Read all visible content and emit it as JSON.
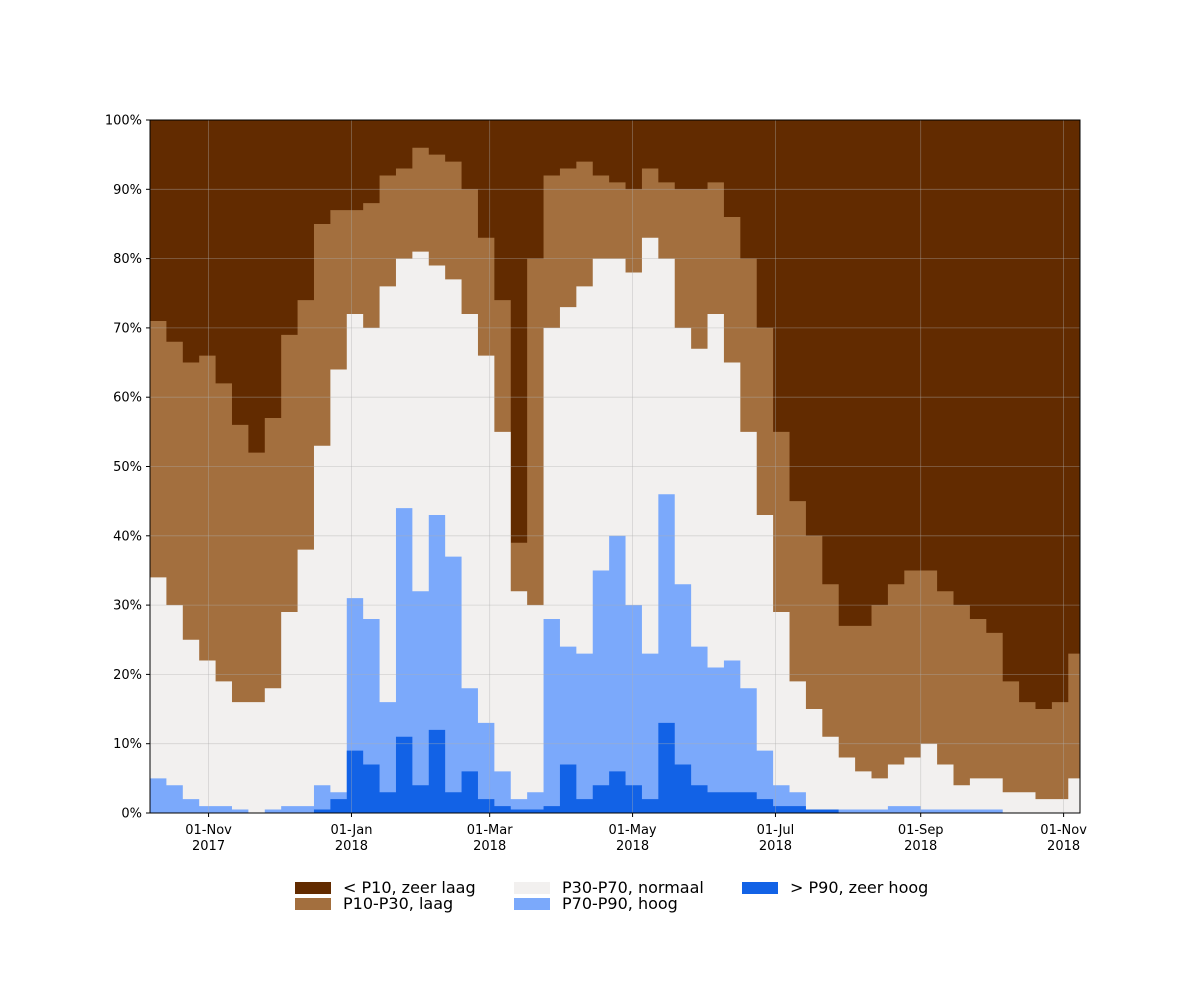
{
  "chart_data": {
    "type": "area",
    "stacked": "percent",
    "title": "",
    "xlabel": "",
    "ylabel": "",
    "ylim": [
      0,
      100
    ],
    "y_ticks": [
      "0%",
      "10%",
      "20%",
      "30%",
      "40%",
      "50%",
      "60%",
      "70%",
      "80%",
      "90%",
      "100%"
    ],
    "x_range": [
      "2017-10-07",
      "2018-11-08"
    ],
    "x_ticks": [
      {
        "date": "2017-11-01",
        "line1": "01-Nov",
        "line2": "2017"
      },
      {
        "date": "2018-01-01",
        "line1": "01-Jan",
        "line2": "2018"
      },
      {
        "date": "2018-03-01",
        "line1": "01-Mar",
        "line2": "2018"
      },
      {
        "date": "2018-05-01",
        "line1": "01-May",
        "line2": "2018"
      },
      {
        "date": "2018-07-01",
        "line1": "01-Jul",
        "line2": "2018"
      },
      {
        "date": "2018-09-01",
        "line1": "01-Sep",
        "line2": "2018"
      },
      {
        "date": "2018-11-01",
        "line1": "01-Nov",
        "line2": "2018"
      }
    ],
    "grid": true,
    "legend_position": "bottom",
    "dates": [
      "2017-10-07",
      "2017-10-14",
      "2017-10-21",
      "2017-10-28",
      "2017-11-04",
      "2017-11-11",
      "2017-11-18",
      "2017-11-25",
      "2017-12-02",
      "2017-12-09",
      "2017-12-16",
      "2017-12-23",
      "2017-12-30",
      "2018-01-06",
      "2018-01-13",
      "2018-01-20",
      "2018-01-27",
      "2018-02-03",
      "2018-02-10",
      "2018-02-17",
      "2018-02-24",
      "2018-03-03",
      "2018-03-10",
      "2018-03-17",
      "2018-03-24",
      "2018-03-31",
      "2018-04-07",
      "2018-04-14",
      "2018-04-21",
      "2018-04-28",
      "2018-05-05",
      "2018-05-12",
      "2018-05-19",
      "2018-05-26",
      "2018-06-02",
      "2018-06-09",
      "2018-06-16",
      "2018-06-23",
      "2018-06-30",
      "2018-07-07",
      "2018-07-14",
      "2018-07-21",
      "2018-07-28",
      "2018-08-04",
      "2018-08-11",
      "2018-08-18",
      "2018-08-25",
      "2018-09-01",
      "2018-09-08",
      "2018-09-15",
      "2018-09-22",
      "2018-09-29",
      "2018-10-06",
      "2018-10-13",
      "2018-10-20",
      "2018-10-27",
      "2018-11-03",
      "2018-11-08"
    ],
    "series": [
      {
        "name": "> P90, zeer hoog",
        "color": "#1262E6",
        "cumulative": [
          0,
          0,
          0,
          0,
          0,
          0,
          0,
          0,
          0,
          0,
          0.5,
          2,
          9,
          7,
          3,
          11,
          4,
          12,
          3,
          6,
          2,
          1,
          0.5,
          0.5,
          1,
          7,
          2,
          4,
          6,
          4,
          2,
          13,
          7,
          4,
          3,
          3,
          3,
          2,
          1,
          1,
          0.5,
          0.5,
          0,
          0,
          0,
          0,
          0,
          0,
          0,
          0,
          0,
          0,
          0,
          0,
          0,
          0,
          0,
          0
        ]
      },
      {
        "name": "P70-P90, hoog",
        "color": "#7BA9FB",
        "cumulative": [
          5,
          4,
          2,
          1,
          1,
          0.5,
          0,
          0.5,
          1,
          1,
          4,
          3,
          31,
          28,
          16,
          44,
          32,
          43,
          37,
          18,
          13,
          6,
          2,
          3,
          28,
          24,
          23,
          35,
          40,
          30,
          23,
          46,
          33,
          24,
          21,
          22,
          18,
          9,
          4,
          3,
          0.5,
          0,
          0.5,
          0.5,
          0.5,
          1,
          1,
          0.5,
          0.5,
          0.5,
          0.5,
          0.5,
          0,
          0,
          0,
          0,
          0,
          0
        ]
      },
      {
        "name": "P30-P70, normaal",
        "color": "#F2F0EF",
        "cumulative": [
          34,
          30,
          25,
          22,
          19,
          16,
          16,
          18,
          29,
          38,
          53,
          64,
          72,
          70,
          76,
          80,
          81,
          79,
          77,
          72,
          66,
          55,
          32,
          30,
          70,
          73,
          76,
          80,
          80,
          78,
          83,
          80,
          70,
          67,
          72,
          65,
          55,
          43,
          29,
          19,
          15,
          11,
          8,
          6,
          5,
          7,
          8,
          10,
          7,
          4,
          5,
          5,
          3,
          3,
          2,
          2,
          5,
          4
        ]
      },
      {
        "name": "P10-P30, laag",
        "color": "#A36F3E",
        "cumulative": [
          71,
          68,
          65,
          66,
          62,
          56,
          52,
          57,
          69,
          74,
          85,
          87,
          87,
          88,
          92,
          93,
          96,
          95,
          94,
          90,
          83,
          74,
          39,
          80,
          92,
          93,
          94,
          92,
          91,
          90,
          93,
          91,
          90,
          90,
          91,
          86,
          80,
          70,
          55,
          45,
          40,
          33,
          27,
          27,
          30,
          33,
          35,
          35,
          32,
          30,
          28,
          26,
          19,
          16,
          15,
          16,
          23,
          23
        ]
      },
      {
        "name": "< P10, zeer laag",
        "color": "#622B00",
        "cumulative": [
          100,
          100,
          100,
          100,
          100,
          100,
          100,
          100,
          100,
          100,
          100,
          100,
          100,
          100,
          100,
          100,
          100,
          100,
          100,
          100,
          100,
          100,
          100,
          100,
          100,
          100,
          100,
          100,
          100,
          100,
          100,
          100,
          100,
          100,
          100,
          100,
          100,
          100,
          100,
          100,
          100,
          100,
          100,
          100,
          100,
          100,
          100,
          100,
          100,
          100,
          100,
          100,
          100,
          100,
          100,
          100,
          100,
          100
        ]
      }
    ]
  },
  "legend": {
    "items": [
      {
        "label": "< P10, zeer laag",
        "color": "#622B00"
      },
      {
        "label": "P10-P30, laag",
        "color": "#A36F3E"
      },
      {
        "label": "P30-P70, normaal",
        "color": "#F2F0EF"
      },
      {
        "label": "P70-P90, hoog",
        "color": "#7BA9FB"
      },
      {
        "label": "> P90, zeer hoog",
        "color": "#1262E6"
      }
    ]
  }
}
